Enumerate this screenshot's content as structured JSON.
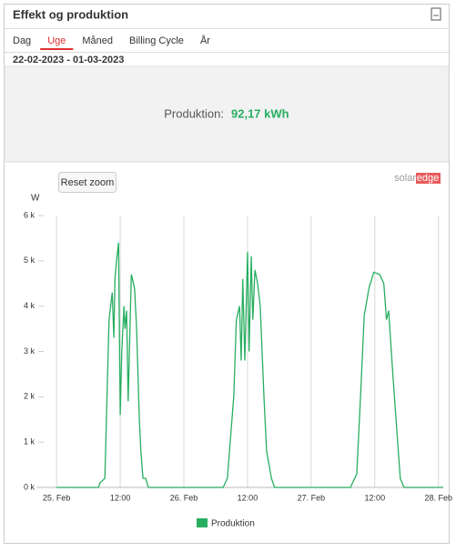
{
  "header": {
    "title": "Effekt og produktion",
    "icon_label": "csv"
  },
  "tabs": [
    "Dag",
    "Uge",
    "Måned",
    "Billing Cycle",
    "År"
  ],
  "active_tab": 1,
  "date_range": "22-02-2023 - 01-03-2023",
  "summary": {
    "label": "Produktion:",
    "value": "92,17 kWh"
  },
  "reset_button": "Reset zoom",
  "logo": {
    "left": "solar",
    "right": "edge"
  },
  "chart_data": {
    "type": "line",
    "y_label": "W",
    "x": [
      0,
      7.9,
      8.2,
      9.1,
      9.9,
      10.5,
      10.8,
      11.0,
      11.3,
      11.7,
      11.8,
      12.0,
      12.3,
      12.7,
      12.9,
      13.2,
      13.5,
      14.1,
      14.7,
      15.1,
      15.6,
      15.9,
      16.3,
      16.8,
      17.3,
      31.4,
      32.2,
      33.4,
      33.9,
      34.5,
      34.8,
      35.1,
      35.5,
      36.0,
      36.3,
      36.7,
      37.0,
      37.4,
      37.9,
      38.4,
      39.1,
      39.6,
      39.9,
      40.5,
      41.1,
      55.4,
      56.6,
      57.3,
      58.0,
      58.9,
      59.8,
      60.9,
      61.7,
      62.2,
      62.6,
      63.4,
      64.3,
      64.8,
      65.5,
      72.9
    ],
    "series": [
      {
        "name": "Produktion",
        "color": "#27ae60",
        "values": [
          0,
          0,
          100,
          200,
          3700,
          4300,
          3300,
          4600,
          5000,
          5400,
          4000,
          1600,
          3000,
          4000,
          3500,
          3900,
          1900,
          4700,
          4400,
          3500,
          1500,
          800,
          200,
          200,
          0,
          0,
          200,
          2000,
          3700,
          4000,
          2800,
          4600,
          2800,
          5200,
          3000,
          5100,
          3700,
          4800,
          4500,
          4000,
          2000,
          800,
          600,
          200,
          0,
          0,
          300,
          2000,
          3800,
          4400,
          4750,
          4700,
          4500,
          3700,
          3900,
          2500,
          1000,
          200,
          0,
          0
        ]
      }
    ],
    "xlim": [
      -3.8,
      72.9
    ],
    "xticks": [
      {
        "value": 0,
        "label": "25. Feb"
      },
      {
        "value": 12,
        "label": "12:00"
      },
      {
        "value": 24,
        "label": "26. Feb"
      },
      {
        "value": 36,
        "label": "12:00"
      },
      {
        "value": 48,
        "label": "27. Feb"
      },
      {
        "value": 60,
        "label": "12:00"
      },
      {
        "value": 72,
        "label": "28. Feb"
      }
    ],
    "ylim": [
      0,
      6000
    ],
    "yticks": [
      {
        "value": 0,
        "label": "0 k"
      },
      {
        "value": 1000,
        "label": "1 k"
      },
      {
        "value": 2000,
        "label": "2 k"
      },
      {
        "value": 3000,
        "label": "3 k"
      },
      {
        "value": 4000,
        "label": "4 k"
      },
      {
        "value": 5000,
        "label": "5 k"
      },
      {
        "value": 6000,
        "label": "6 k"
      }
    ],
    "grid": true
  }
}
